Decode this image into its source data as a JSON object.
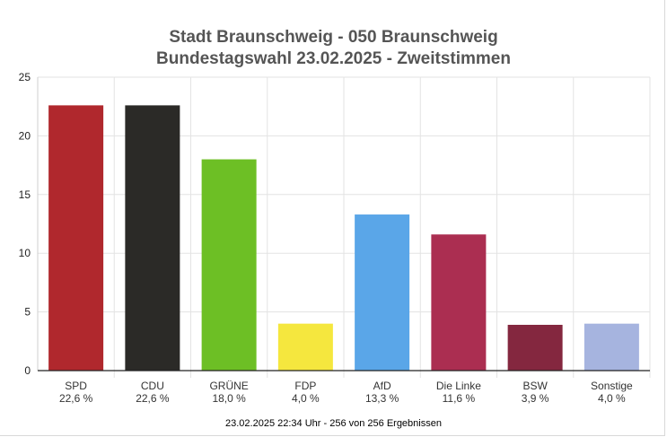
{
  "title_line1": "Stadt Braunschweig - 050 Braunschweig",
  "title_line2": "Bundestagswahl 23.02.2025  - Zweitstimmen",
  "footer": "23.02.2025 22:34 Uhr - 256 von 256 Ergebnissen",
  "chart_data": {
    "type": "bar",
    "categories": [
      "SPD",
      "CDU",
      "GRÜNE",
      "FDP",
      "AfD",
      "Die Linke",
      "BSW",
      "Sonstige"
    ],
    "values": [
      22.6,
      22.6,
      18.0,
      4.0,
      13.3,
      11.6,
      3.9,
      4.0
    ],
    "value_labels": [
      "22,6 %",
      "22,6 %",
      "18,0 %",
      "4,0 %",
      "13,3 %",
      "11,6 %",
      "3,9 %",
      "4,0 %"
    ],
    "colors": [
      "#b0282d",
      "#2b2a27",
      "#6dbf25",
      "#f5e73e",
      "#5aa6e8",
      "#ab2e51",
      "#84273f",
      "#a6b4df"
    ],
    "y_ticks": [
      "0",
      "5",
      "10",
      "15",
      "20",
      "25"
    ],
    "ylim": [
      0,
      25
    ],
    "grid": true,
    "title": "Stadt Braunschweig - 050 Braunschweig",
    "subtitle": "Bundestagswahl 23.02.2025  - Zweitstimmen"
  }
}
